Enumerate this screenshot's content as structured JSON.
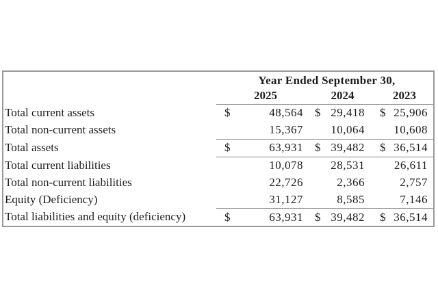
{
  "table": {
    "period_header": "Year Ended September 30,",
    "years": [
      "2025",
      "2024",
      "2023"
    ],
    "rows": [
      {
        "label": "Total current assets",
        "currency": [
          "$",
          "$",
          "$"
        ],
        "values": [
          "48,564",
          "29,418",
          "25,906"
        ]
      },
      {
        "label": "Total non-current assets",
        "currency": [
          "",
          "",
          ""
        ],
        "values": [
          "15,367",
          "10,064",
          "10,608"
        ]
      },
      {
        "label": "Total assets",
        "currency": [
          "$",
          "$",
          "$"
        ],
        "values": [
          "63,931",
          "39,482",
          "36,514"
        ]
      },
      {
        "label": "Total current liabilities",
        "currency": [
          "",
          "",
          ""
        ],
        "values": [
          "10,078",
          "28,531",
          "26,611"
        ]
      },
      {
        "label": "Total non-current liabilities",
        "currency": [
          "",
          "",
          ""
        ],
        "values": [
          "22,726",
          "2,366",
          "2,757"
        ]
      },
      {
        "label": "Equity (Deficiency)",
        "currency": [
          "",
          "",
          ""
        ],
        "values": [
          "31,127",
          "8,585",
          "7,146"
        ]
      },
      {
        "label": "Total liabilities and equity (deficiency)",
        "currency": [
          "$",
          "$",
          "$"
        ],
        "values": [
          "63,931",
          "39,482",
          "36,514"
        ]
      }
    ],
    "colors": {
      "background": "#ffffff",
      "text": "#1c1c1c",
      "outer_border": "#999999",
      "rule": "#858585"
    }
  }
}
